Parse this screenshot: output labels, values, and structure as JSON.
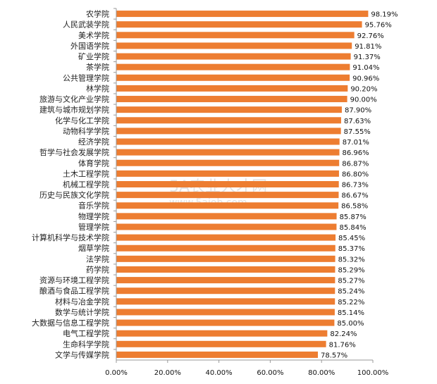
{
  "chart_data": {
    "type": "bar",
    "orientation": "horizontal",
    "categories": [
      "农学院",
      "人民武装学院",
      "美术学院",
      "外国语学院",
      "矿业学院",
      "茶学院",
      "公共管理学院",
      "林学院",
      "旅游与文化产业学院",
      "建筑与城市规划学院",
      "化学与化工学院",
      "动物科学学院",
      "经济学院",
      "哲学与社会发展学院",
      "体育学院",
      "土木工程学院",
      "机械工程学院",
      "历史与民族文化学院",
      "音乐学院",
      "物理学院",
      "管理学院",
      "计算机科学与技术学院",
      "烟草学院",
      "法学院",
      "药学院",
      "资源与环境工程学院",
      "酿酒与食品工程学院",
      "材料与冶金学院",
      "数学与统计学院",
      "大数据与信息工程学院",
      "电气工程学院",
      "生命科学学院",
      "文学与传媒学院"
    ],
    "values": [
      98.19,
      95.76,
      92.76,
      91.81,
      91.37,
      91.04,
      90.96,
      90.2,
      90.0,
      87.9,
      87.63,
      87.55,
      87.01,
      86.96,
      86.87,
      86.8,
      86.73,
      86.67,
      86.58,
      85.87,
      85.84,
      85.45,
      85.37,
      85.32,
      85.29,
      85.27,
      85.24,
      85.22,
      85.14,
      85.0,
      82.24,
      81.76,
      78.57
    ],
    "data_labels": [
      "98.19%",
      "95.76%",
      "92.76%",
      "91.81%",
      "91.37%",
      "91.04%",
      "90.96%",
      "90.20%",
      "90.00%",
      "87.90%",
      "87.63%",
      "87.55%",
      "87.01%",
      "86.96%",
      "86.87%",
      "86.80%",
      "86.73%",
      "86.67%",
      "86.58%",
      "85.87%",
      "85.84%",
      "85.45%",
      "85.37%",
      "85.32%",
      "85.29%",
      "85.27%",
      "85.24%",
      "85.22%",
      "85.14%",
      "85.00%",
      "82.24%",
      "81.76%",
      "78.57%"
    ],
    "xlim": [
      0,
      100
    ],
    "xticks": [
      0,
      20,
      40,
      60,
      80,
      100
    ],
    "xtick_labels": [
      "0.00%",
      "20.00%",
      "40.00%",
      "60.00%",
      "80.00%",
      "100.00%"
    ],
    "title": "",
    "xlabel": "",
    "ylabel": "",
    "grid": false,
    "legend": "none",
    "bar_color": "#ED7D31"
  },
  "watermark": {
    "line1": "5A农业人才网",
    "line2": "www.5ajob.com"
  }
}
